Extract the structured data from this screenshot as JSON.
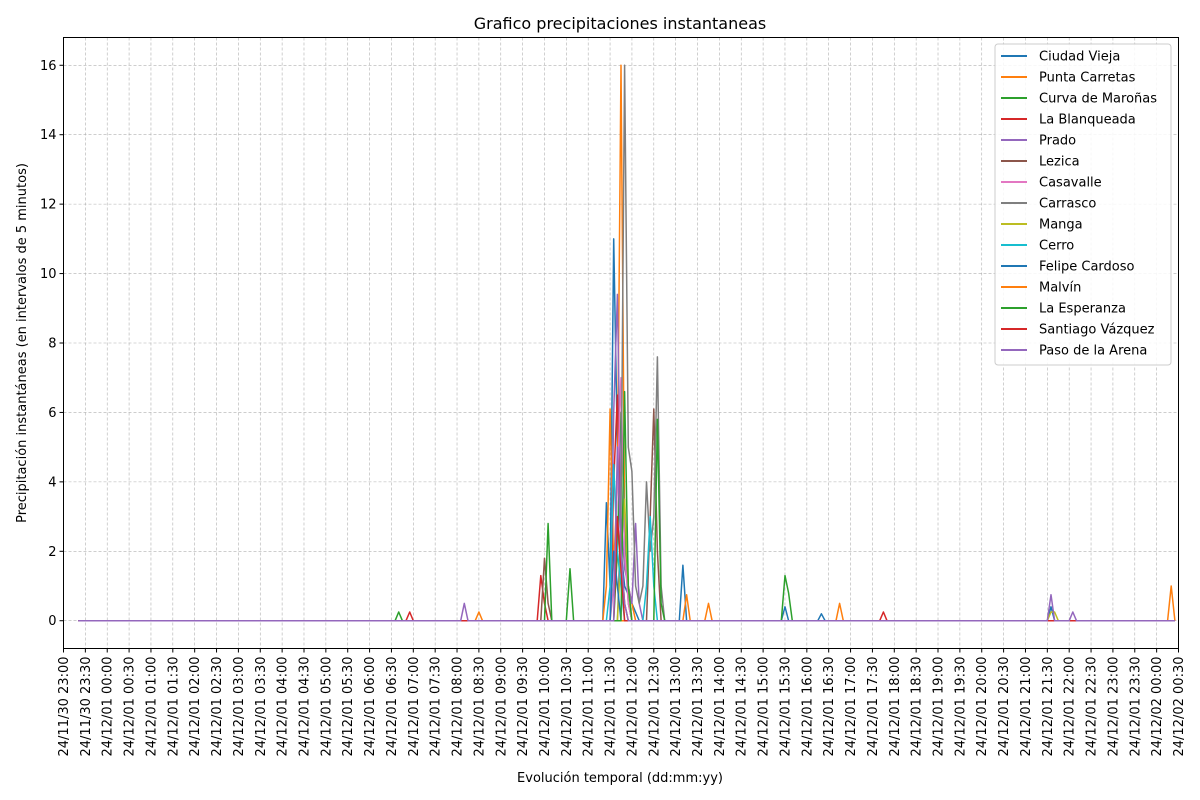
{
  "chart_data": {
    "type": "line",
    "title": "Grafico precipitaciones instantaneas",
    "xlabel": "Evolución temporal (dd:mm:yy)",
    "ylabel": "Precipitación instantáneas (en intervalos de 5 minutos)",
    "xlim": [
      "24/11/30 23:00",
      "24/12/02 00:30"
    ],
    "ylim": [
      -0.8,
      16.8
    ],
    "yticks": [
      0,
      2,
      4,
      6,
      8,
      10,
      12,
      14,
      16
    ],
    "xtick_interval_minutes": 30,
    "xtick_label_format": "yy/mm/dd HH:MM",
    "grid": true,
    "legend_position": "top-right",
    "series": [
      {
        "name": "Ciudad Vieja",
        "color": "#1f77b4",
        "points": [
          [
            "24/11/30 23:20",
            0
          ],
          [
            "24/12/01 11:20",
            0
          ],
          [
            "24/12/01 11:25",
            3.4
          ],
          [
            "24/12/01 11:30",
            1
          ],
          [
            "24/12/01 11:35",
            11
          ],
          [
            "24/12/01 11:40",
            5
          ],
          [
            "24/12/01 11:45",
            2
          ],
          [
            "24/12/01 11:50",
            1
          ],
          [
            "24/12/01 12:00",
            0.5
          ],
          [
            "24/12/01 12:10",
            0
          ],
          [
            "24/12/01 13:05",
            0
          ],
          [
            "24/12/01 13:10",
            1.6
          ],
          [
            "24/12/01 13:15",
            0
          ],
          [
            "24/12/01 21:30",
            0
          ],
          [
            "24/12/01 21:35",
            0.4
          ],
          [
            "24/12/01 21:40",
            0
          ],
          [
            "24/12/02 00:25",
            0
          ]
        ]
      },
      {
        "name": "Punta Carretas",
        "color": "#ff7f0e",
        "points": [
          [
            "24/11/30 23:20",
            0
          ],
          [
            "24/12/01 11:20",
            0
          ],
          [
            "24/12/01 11:25",
            1
          ],
          [
            "24/12/01 11:30",
            6.1
          ],
          [
            "24/12/01 11:35",
            1.5
          ],
          [
            "24/12/01 11:40",
            4
          ],
          [
            "24/12/01 11:45",
            16
          ],
          [
            "24/12/01 11:50",
            3
          ],
          [
            "24/12/01 11:55",
            1
          ],
          [
            "24/12/01 12:00",
            0.5
          ],
          [
            "24/12/01 12:05",
            0
          ],
          [
            "24/12/02 00:25",
            0
          ]
        ]
      },
      {
        "name": "Curva de Maroñas",
        "color": "#2ca02c",
        "points": [
          [
            "24/11/30 23:20",
            0
          ],
          [
            "24/12/01 11:35",
            0
          ],
          [
            "24/12/01 11:40",
            2
          ],
          [
            "24/12/01 11:45",
            6
          ],
          [
            "24/12/01 11:50",
            3
          ],
          [
            "24/12/01 11:55",
            0.5
          ],
          [
            "24/12/01 12:00",
            0
          ],
          [
            "24/12/02 00:25",
            0
          ]
        ]
      },
      {
        "name": "La Blanqueada",
        "color": "#d62728",
        "points": [
          [
            "24/11/30 23:20",
            0
          ],
          [
            "24/12/01 06:50",
            0
          ],
          [
            "24/12/01 06:55",
            0.25
          ],
          [
            "24/12/01 07:00",
            0
          ],
          [
            "24/12/01 09:50",
            0
          ],
          [
            "24/12/01 09:55",
            1.3
          ],
          [
            "24/12/01 10:00",
            0.5
          ],
          [
            "24/12/01 10:05",
            0
          ],
          [
            "24/12/01 11:30",
            0
          ],
          [
            "24/12/01 11:35",
            4
          ],
          [
            "24/12/01 11:40",
            6.5
          ],
          [
            "24/12/01 11:45",
            2
          ],
          [
            "24/12/01 11:50",
            0.5
          ],
          [
            "24/12/01 11:55",
            0
          ],
          [
            "24/12/02 00:25",
            0
          ]
        ]
      },
      {
        "name": "Prado",
        "color": "#9467bd",
        "points": [
          [
            "24/11/30 23:20",
            0
          ],
          [
            "24/12/01 11:30",
            0
          ],
          [
            "24/12/01 11:35",
            6
          ],
          [
            "24/12/01 11:40",
            9.4
          ],
          [
            "24/12/01 11:45",
            3
          ],
          [
            "24/12/01 11:50",
            1.5
          ],
          [
            "24/12/01 11:55",
            1
          ],
          [
            "24/12/01 12:00",
            0.5
          ],
          [
            "24/12/01 12:05",
            2.8
          ],
          [
            "24/12/01 12:10",
            0.5
          ],
          [
            "24/12/01 12:15",
            0
          ],
          [
            "24/12/02 00:25",
            0
          ]
        ]
      },
      {
        "name": "Lezica",
        "color": "#8c564b",
        "points": [
          [
            "24/11/30 23:20",
            0
          ],
          [
            "24/12/01 09:55",
            0
          ],
          [
            "24/12/01 10:00",
            1.8
          ],
          [
            "24/12/01 10:05",
            0.5
          ],
          [
            "24/12/01 10:10",
            0
          ],
          [
            "24/12/01 12:20",
            0
          ],
          [
            "24/12/01 12:25",
            3
          ],
          [
            "24/12/01 12:30",
            6.1
          ],
          [
            "24/12/01 12:35",
            2
          ],
          [
            "24/12/01 12:40",
            0
          ],
          [
            "24/12/02 00:25",
            0
          ]
        ]
      },
      {
        "name": "Casavalle",
        "color": "#e377c2",
        "points": [
          [
            "24/11/30 23:20",
            0
          ],
          [
            "24/12/01 11:30",
            0
          ],
          [
            "24/12/01 11:35",
            1
          ],
          [
            "24/12/01 11:40",
            4
          ],
          [
            "24/12/01 11:45",
            7
          ],
          [
            "24/12/01 11:50",
            2
          ],
          [
            "24/12/01 11:55",
            0.5
          ],
          [
            "24/12/01 12:00",
            0
          ],
          [
            "24/12/02 00:25",
            0
          ]
        ]
      },
      {
        "name": "Carrasco",
        "color": "#7f7f7f",
        "points": [
          [
            "24/11/30 23:20",
            0
          ],
          [
            "24/12/01 11:40",
            0
          ],
          [
            "24/12/01 11:45",
            3
          ],
          [
            "24/12/01 11:50",
            16
          ],
          [
            "24/12/01 11:55",
            5
          ],
          [
            "24/12/01 12:00",
            4.3
          ],
          [
            "24/12/01 12:05",
            1
          ],
          [
            "24/12/01 12:10",
            0.5
          ],
          [
            "24/12/01 12:15",
            1
          ],
          [
            "24/12/01 12:20",
            4
          ],
          [
            "24/12/01 12:25",
            2
          ],
          [
            "24/12/01 12:30",
            3
          ],
          [
            "24/12/01 12:35",
            7.6
          ],
          [
            "24/12/01 12:40",
            1
          ],
          [
            "24/12/01 12:45",
            0
          ],
          [
            "24/12/02 00:25",
            0
          ]
        ]
      },
      {
        "name": "Manga",
        "color": "#bcbd22",
        "points": [
          [
            "24/11/30 23:20",
            0
          ],
          [
            "24/12/01 11:40",
            0
          ],
          [
            "24/12/01 11:45",
            2
          ],
          [
            "24/12/01 11:50",
            3.5
          ],
          [
            "24/12/01 11:55",
            1
          ],
          [
            "24/12/01 12:00",
            0
          ],
          [
            "24/12/01 21:30",
            0
          ],
          [
            "24/12/01 21:35",
            0.25
          ],
          [
            "24/12/01 21:40",
            0.25
          ],
          [
            "24/12/01 21:45",
            0
          ],
          [
            "24/12/02 00:25",
            0
          ]
        ]
      },
      {
        "name": "Cerro",
        "color": "#17becf",
        "points": [
          [
            "24/11/30 23:20",
            0
          ],
          [
            "24/12/01 11:25",
            0
          ],
          [
            "24/12/01 11:30",
            1
          ],
          [
            "24/12/01 11:35",
            4.5
          ],
          [
            "24/12/01 11:40",
            2
          ],
          [
            "24/12/01 11:45",
            1
          ],
          [
            "24/12/01 11:50",
            0
          ],
          [
            "24/12/01 12:15",
            0
          ],
          [
            "24/12/01 12:20",
            1
          ],
          [
            "24/12/01 12:25",
            3
          ],
          [
            "24/12/01 12:30",
            1
          ],
          [
            "24/12/01 12:35",
            0
          ],
          [
            "24/12/02 00:25",
            0
          ]
        ]
      },
      {
        "name": "Felipe Cardoso",
        "color": "#1f77b4",
        "points": [
          [
            "24/11/30 23:20",
            0
          ],
          [
            "24/12/01 11:30",
            0
          ],
          [
            "24/12/01 11:35",
            2
          ],
          [
            "24/12/01 11:40",
            1
          ],
          [
            "24/12/01 11:45",
            0
          ],
          [
            "24/12/01 15:25",
            0
          ],
          [
            "24/12/01 15:30",
            0.4
          ],
          [
            "24/12/01 15:35",
            0
          ],
          [
            "24/12/01 16:15",
            0
          ],
          [
            "24/12/01 16:20",
            0.2
          ],
          [
            "24/12/01 16:25",
            0
          ],
          [
            "24/12/02 00:25",
            0
          ]
        ]
      },
      {
        "name": "Malvín",
        "color": "#ff7f0e",
        "points": [
          [
            "24/11/30 23:20",
            0
          ],
          [
            "24/12/01 08:25",
            0
          ],
          [
            "24/12/01 08:30",
            0.25
          ],
          [
            "24/12/01 08:35",
            0
          ],
          [
            "24/12/01 13:10",
            0
          ],
          [
            "24/12/01 13:15",
            0.75
          ],
          [
            "24/12/01 13:20",
            0
          ],
          [
            "24/12/01 13:40",
            0
          ],
          [
            "24/12/01 13:45",
            0.5
          ],
          [
            "24/12/01 13:50",
            0
          ],
          [
            "24/12/01 16:40",
            0
          ],
          [
            "24/12/01 16:45",
            0.5
          ],
          [
            "24/12/01 16:50",
            0
          ],
          [
            "24/12/02 00:15",
            0
          ],
          [
            "24/12/02 00:20",
            1
          ],
          [
            "24/12/02 00:25",
            0
          ]
        ]
      },
      {
        "name": "La Esperanza",
        "color": "#2ca02c",
        "points": [
          [
            "24/11/30 23:20",
            0
          ],
          [
            "24/12/01 06:35",
            0
          ],
          [
            "24/12/01 06:40",
            0.25
          ],
          [
            "24/12/01 06:45",
            0
          ],
          [
            "24/12/01 10:00",
            0
          ],
          [
            "24/12/01 10:05",
            2.8
          ],
          [
            "24/12/01 10:10",
            0
          ],
          [
            "24/12/01 10:30",
            0
          ],
          [
            "24/12/01 10:35",
            1.5
          ],
          [
            "24/12/01 10:40",
            0
          ],
          [
            "24/12/01 11:45",
            0
          ],
          [
            "24/12/01 11:50",
            6.6
          ],
          [
            "24/12/01 11:55",
            1
          ],
          [
            "24/12/01 12:00",
            0
          ],
          [
            "24/12/01 12:30",
            0
          ],
          [
            "24/12/01 12:35",
            5.8
          ],
          [
            "24/12/01 12:40",
            0.5
          ],
          [
            "24/12/01 12:45",
            0
          ],
          [
            "24/12/01 15:25",
            0
          ],
          [
            "24/12/01 15:30",
            1.3
          ],
          [
            "24/12/01 15:35",
            0.8
          ],
          [
            "24/12/01 15:40",
            0
          ],
          [
            "24/12/02 00:25",
            0
          ]
        ]
      },
      {
        "name": "Santiago Vázquez",
        "color": "#d62728",
        "points": [
          [
            "24/11/30 23:20",
            0
          ],
          [
            "24/12/01 11:35",
            0
          ],
          [
            "24/12/01 11:40",
            3
          ],
          [
            "24/12/01 11:45",
            1.5
          ],
          [
            "24/12/01 11:50",
            0
          ],
          [
            "24/12/01 17:40",
            0
          ],
          [
            "24/12/01 17:45",
            0.25
          ],
          [
            "24/12/01 17:50",
            0
          ],
          [
            "24/12/02 00:25",
            0
          ]
        ]
      },
      {
        "name": "Paso de la Arena",
        "color": "#9467bd",
        "points": [
          [
            "24/11/30 23:20",
            0
          ],
          [
            "24/12/01 08:05",
            0
          ],
          [
            "24/12/01 08:10",
            0.5
          ],
          [
            "24/12/01 08:15",
            0
          ],
          [
            "24/12/01 11:35",
            0
          ],
          [
            "24/12/01 11:40",
            5
          ],
          [
            "24/12/01 11:45",
            2
          ],
          [
            "24/12/01 11:50",
            0.5
          ],
          [
            "24/12/01 11:55",
            0
          ],
          [
            "24/12/01 21:30",
            0
          ],
          [
            "24/12/01 21:35",
            0.75
          ],
          [
            "24/12/01 21:40",
            0
          ],
          [
            "24/12/01 22:00",
            0
          ],
          [
            "24/12/01 22:05",
            0.25
          ],
          [
            "24/12/01 22:10",
            0
          ],
          [
            "24/12/02 00:25",
            0
          ]
        ]
      }
    ]
  }
}
